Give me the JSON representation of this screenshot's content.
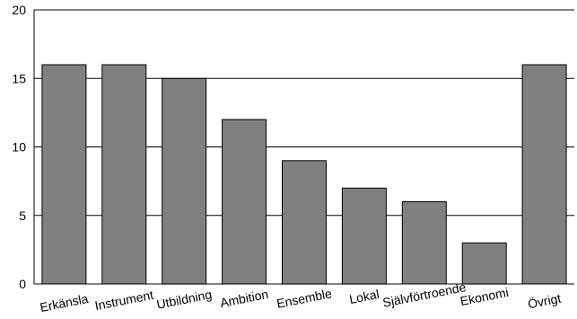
{
  "chart_data": {
    "type": "bar",
    "categories": [
      "Erkänsla",
      "Instrument",
      "Utbildning",
      "Ambition",
      "Ensemble",
      "Lokal",
      "Självförtroende",
      "Ekonomi",
      "Övrigt"
    ],
    "values": [
      16,
      16,
      15,
      12,
      9,
      7,
      6,
      3,
      16
    ],
    "y_ticks": [
      "0",
      "5",
      "10",
      "15",
      "20"
    ],
    "ylim": [
      0,
      20
    ],
    "title": "",
    "xlabel": "",
    "ylabel": "",
    "grid": "horizontal",
    "legend": "none",
    "colors": {
      "bar_fill": "#808080",
      "bar_stroke": "#000000",
      "grid": "#000000",
      "axis": "#000000"
    }
  }
}
